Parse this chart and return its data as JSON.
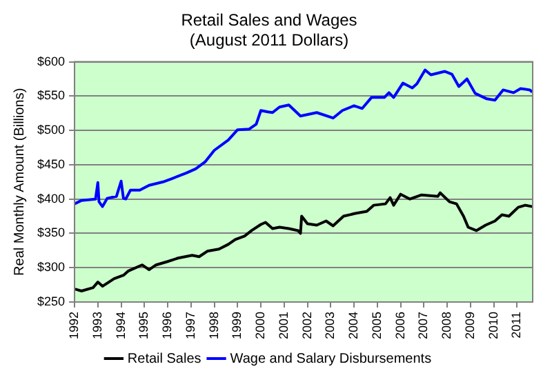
{
  "chart_data": {
    "type": "line",
    "title": "Retail Sales and Wages",
    "subtitle": "(August 2011 Dollars)",
    "ylabel": "Real Monthly Amount (Billions)",
    "xlim": [
      1992,
      2011.67
    ],
    "xticks": [
      1992,
      1993,
      1994,
      1995,
      1996,
      1997,
      1998,
      1999,
      2000,
      2001,
      2002,
      2003,
      2004,
      2005,
      2006,
      2007,
      2008,
      2009,
      2010,
      2011
    ],
    "ylim": [
      250,
      600
    ],
    "yticks": [
      {
        "value": 250,
        "label": "$250"
      },
      {
        "value": 300,
        "label": "$300"
      },
      {
        "value": 350,
        "label": "$350"
      },
      {
        "value": 400,
        "label": "$400"
      },
      {
        "value": 450,
        "label": "$450"
      },
      {
        "value": 500,
        "label": "$500"
      },
      {
        "value": 550,
        "label": "$550"
      },
      {
        "value": 600,
        "label": "$600"
      }
    ],
    "grid": "y",
    "legend": "bottom",
    "marker": "none",
    "line_style": "solid",
    "series": [
      {
        "name": "Retail Sales",
        "color": "#000000",
        "x": [
          1992.0,
          1992.3,
          1992.8,
          1993.0,
          1993.2,
          1993.7,
          1994.1,
          1994.3,
          1994.9,
          1995.2,
          1995.5,
          1996.0,
          1996.45,
          1997.05,
          1997.35,
          1997.7,
          1998.2,
          1998.6,
          1998.9,
          1999.3,
          1999.6,
          2000.0,
          2000.2,
          2000.5,
          2000.8,
          2001.2,
          2001.6,
          2001.7,
          2001.75,
          2002.0,
          2002.4,
          2002.8,
          2003.1,
          2003.55,
          2004.05,
          2004.55,
          2004.85,
          2005.35,
          2005.55,
          2005.7,
          2006.0,
          2006.4,
          2006.9,
          2007.6,
          2007.7,
          2008.1,
          2008.4,
          2008.7,
          2008.9,
          2009.25,
          2009.65,
          2010.05,
          2010.35,
          2010.65,
          2011.05,
          2011.35,
          2011.65
        ],
        "values": [
          269,
          266,
          271,
          279,
          273,
          284,
          289,
          295,
          304,
          297,
          304,
          309,
          314,
          318,
          316,
          324,
          327,
          334,
          341,
          346,
          354,
          363,
          366,
          357,
          359,
          357,
          354,
          350,
          375,
          364,
          362,
          368,
          361,
          375,
          379,
          382,
          391,
          393,
          402,
          391,
          407,
          400,
          406,
          404,
          409,
          396,
          393,
          375,
          359,
          354,
          362,
          368,
          377,
          375,
          388,
          391,
          389
        ]
      },
      {
        "name": "Wage and Salary Disbursements",
        "color": "#0000ff",
        "x": [
          1992.0,
          1992.3,
          1992.9,
          1993.0,
          1993.05,
          1993.2,
          1993.4,
          1993.8,
          1994.0,
          1994.1,
          1994.2,
          1994.4,
          1994.8,
          1995.2,
          1995.8,
          1996.2,
          1996.8,
          1997.2,
          1997.6,
          1998.0,
          1998.6,
          1999.0,
          1999.5,
          1999.8,
          2000.0,
          2000.3,
          2000.5,
          2000.8,
          2001.2,
          2001.7,
          2002.4,
          2003.1,
          2003.5,
          2004.0,
          2004.35,
          2004.75,
          2005.3,
          2005.5,
          2005.7,
          2006.1,
          2006.5,
          2006.7,
          2007.05,
          2007.3,
          2007.9,
          2008.2,
          2008.5,
          2008.85,
          2009.2,
          2009.7,
          2010.05,
          2010.4,
          2010.85,
          2011.15,
          2011.55,
          2011.65
        ],
        "values": [
          393,
          398,
          400,
          424,
          396,
          389,
          401,
          404,
          426,
          401,
          400,
          413,
          413,
          420,
          425,
          430,
          438,
          444,
          454,
          471,
          486,
          501,
          502,
          509,
          529,
          527,
          526,
          534,
          537,
          521,
          526,
          518,
          529,
          536,
          532,
          548,
          548,
          555,
          548,
          569,
          562,
          568,
          588,
          581,
          586,
          582,
          564,
          575,
          554,
          546,
          544,
          559,
          555,
          561,
          559,
          556
        ]
      }
    ]
  }
}
